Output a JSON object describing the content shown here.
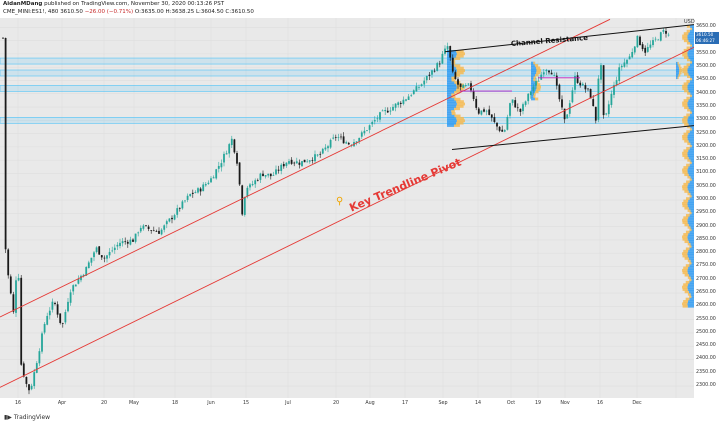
{
  "header": {
    "author": "AidanMDang",
    "published": "published on TradingView.com, November 30, 2020 00:13:26 PST",
    "symbol": "CME_MINI:ES1!, 480",
    "last": "3610.50",
    "change": "−26.00 (−0.71%)",
    "ohlc": "O:3635.00  H:3638.25  L:3604.50  C:3610.50"
  },
  "footer": {
    "brand": "TradingView"
  },
  "y_axis": {
    "currency": "USD",
    "ticks": [
      "3650.00",
      "3600.00",
      "3550.00",
      "3500.00",
      "3450.00",
      "3400.00",
      "3350.00",
      "3300.00",
      "3250.00",
      "3200.00",
      "3150.00",
      "3100.00",
      "3050.00",
      "3000.00",
      "2950.00",
      "2900.00",
      "2850.00",
      "2800.00",
      "2750.00",
      "2700.00",
      "2650.00",
      "2600.00",
      "2550.00",
      "2500.00",
      "2450.00",
      "2400.00",
      "2350.00",
      "2300.00"
    ],
    "price_tag": "3610.50",
    "time_tag": "06:46:27"
  },
  "annotations": {
    "channel_resistance": "Channel Resistance",
    "key_pivot": "Key Trendline Pivot"
  },
  "colors": {
    "up": "#26a69a",
    "down": "#1a1a1a",
    "trend": "#e53935",
    "channel": "#111111",
    "zone": "#4fc3f7",
    "vp_up": "#2196f3",
    "vp_down": "#f6b84a",
    "magenta": "#c020c0"
  },
  "chart_data": {
    "type": "candlestick",
    "symbol": "CME_MINI:ES1!",
    "interval": "480",
    "x_ticks": [
      "16",
      "Apr",
      "20",
      "May",
      "18",
      "Jun",
      "15",
      "Jul",
      "20",
      "Aug",
      "17",
      "Sep",
      "14",
      "Oct",
      "19",
      "Nov",
      "16",
      "Dec"
    ],
    "ylim": [
      2255,
      3685
    ],
    "closes_approx": [
      {
        "x": "16",
        "y": 2850
      },
      {
        "x": "Apr",
        "y": 2520
      },
      {
        "x": "20",
        "y": 2780
      },
      {
        "x": "May",
        "y": 2850
      },
      {
        "x": "18",
        "y": 2950
      },
      {
        "x": "Jun",
        "y": 3080
      },
      {
        "x": "15",
        "y": 3050
      },
      {
        "x": "Jul",
        "y": 3150
      },
      {
        "x": "20",
        "y": 3240
      },
      {
        "x": "Aug",
        "y": 3280
      },
      {
        "x": "17",
        "y": 3380
      },
      {
        "x": "Sep",
        "y": 3550
      },
      {
        "x": "14",
        "y": 3330
      },
      {
        "x": "Oct",
        "y": 3380
      },
      {
        "x": "19",
        "y": 3450
      },
      {
        "x": "Nov",
        "y": 3290
      },
      {
        "x": "16",
        "y": 3570
      },
      {
        "x": "Dec",
        "y": 3610
      }
    ],
    "support_zones": [
      3523,
      3478,
      3420,
      3300
    ],
    "last_price": 3610.5
  }
}
